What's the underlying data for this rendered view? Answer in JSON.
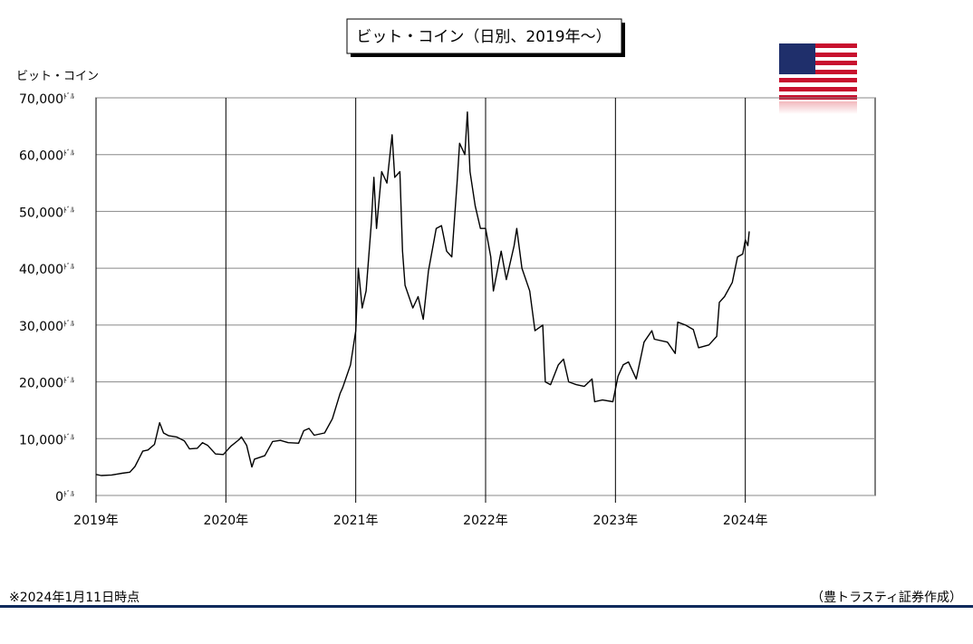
{
  "chart_data": {
    "type": "line",
    "title": "ビット・コイン（日別、2019年～）",
    "y_axis_label": "ビット・コイン",
    "y_unit": "ﾄﾞﾙ",
    "note": "※2024年1月11日時点",
    "source": "（豊トラスティ証券作成）",
    "xlim": [
      2019,
      2025
    ],
    "xticks": [
      {
        "value": 2019,
        "label": "2019年"
      },
      {
        "value": 2020,
        "label": "2020年"
      },
      {
        "value": 2021,
        "label": "2021年"
      },
      {
        "value": 2022,
        "label": "2022年"
      },
      {
        "value": 2023,
        "label": "2023年"
      },
      {
        "value": 2024,
        "label": "2024年"
      }
    ],
    "ylim": [
      0,
      70000
    ],
    "yticks": [
      0,
      {
        "value": 10000,
        "label": "10,000"
      },
      {
        "value": 20000,
        "label": "20,000"
      },
      {
        "value": 30000,
        "label": "30,000"
      },
      {
        "value": 40000,
        "label": "40,000"
      },
      {
        "value": 50000,
        "label": "50,000"
      },
      {
        "value": 60000,
        "label": "60,000"
      },
      {
        "value": 70000,
        "label": "70,000"
      }
    ],
    "grid": true,
    "series": [
      {
        "name": "ビット・コイン",
        "color": "#000000",
        "x": [
          2019.0,
          2019.04,
          2019.12,
          2019.2,
          2019.26,
          2019.3,
          2019.36,
          2019.4,
          2019.45,
          2019.49,
          2019.52,
          2019.56,
          2019.62,
          2019.68,
          2019.72,
          2019.78,
          2019.82,
          2019.86,
          2019.92,
          2019.98,
          2020.04,
          2020.1,
          2020.12,
          2020.16,
          2020.2,
          2020.22,
          2020.3,
          2020.36,
          2020.42,
          2020.48,
          2020.56,
          2020.6,
          2020.64,
          2020.68,
          2020.76,
          2020.82,
          2020.88,
          2020.9,
          2020.96,
          2021.0,
          2021.02,
          2021.05,
          2021.08,
          2021.12,
          2021.14,
          2021.16,
          2021.2,
          2021.24,
          2021.28,
          2021.3,
          2021.34,
          2021.36,
          2021.38,
          2021.44,
          2021.48,
          2021.52,
          2021.56,
          2021.62,
          2021.66,
          2021.7,
          2021.74,
          2021.78,
          2021.8,
          2021.84,
          2021.86,
          2021.88,
          2021.92,
          2021.96,
          2022.0,
          2022.04,
          2022.06,
          2022.12,
          2022.16,
          2022.22,
          2022.24,
          2022.28,
          2022.34,
          2022.38,
          2022.44,
          2022.46,
          2022.5,
          2022.56,
          2022.6,
          2022.64,
          2022.7,
          2022.76,
          2022.82,
          2022.84,
          2022.9,
          2022.98,
          2023.02,
          2023.06,
          2023.1,
          2023.16,
          2023.22,
          2023.28,
          2023.3,
          2023.4,
          2023.46,
          2023.48,
          2023.54,
          2023.6,
          2023.64,
          2023.72,
          2023.78,
          2023.8,
          2023.84,
          2023.9,
          2023.94,
          2023.98,
          2024.0,
          2024.02,
          2024.03
        ],
        "values": [
          3700,
          3500,
          3600,
          3900,
          4100,
          5100,
          7800,
          8000,
          9000,
          12800,
          11000,
          10500,
          10300,
          9600,
          8200,
          8300,
          9300,
          8800,
          7300,
          7200,
          8700,
          9800,
          10300,
          8800,
          5000,
          6400,
          7000,
          9500,
          9700,
          9300,
          9200,
          11400,
          11800,
          10600,
          11000,
          13500,
          18000,
          19000,
          23000,
          29000,
          40000,
          33000,
          36000,
          48000,
          56000,
          47000,
          57000,
          55000,
          63500,
          56000,
          57000,
          43000,
          37000,
          33000,
          35000,
          31000,
          39500,
          47000,
          47500,
          43000,
          42000,
          55000,
          62000,
          60000,
          67500,
          57000,
          51000,
          47000,
          47000,
          42000,
          36000,
          43000,
          38000,
          44000,
          47000,
          40000,
          36000,
          29000,
          30000,
          20000,
          19500,
          23000,
          24000,
          20000,
          19500,
          19200,
          20500,
          16500,
          16800,
          16500,
          21000,
          23000,
          23500,
          20500,
          27000,
          29000,
          27500,
          27000,
          25000,
          30500,
          30000,
          29200,
          26000,
          26500,
          28000,
          34000,
          35000,
          37500,
          42000,
          42500,
          45000,
          44000,
          46500
        ]
      }
    ]
  }
}
